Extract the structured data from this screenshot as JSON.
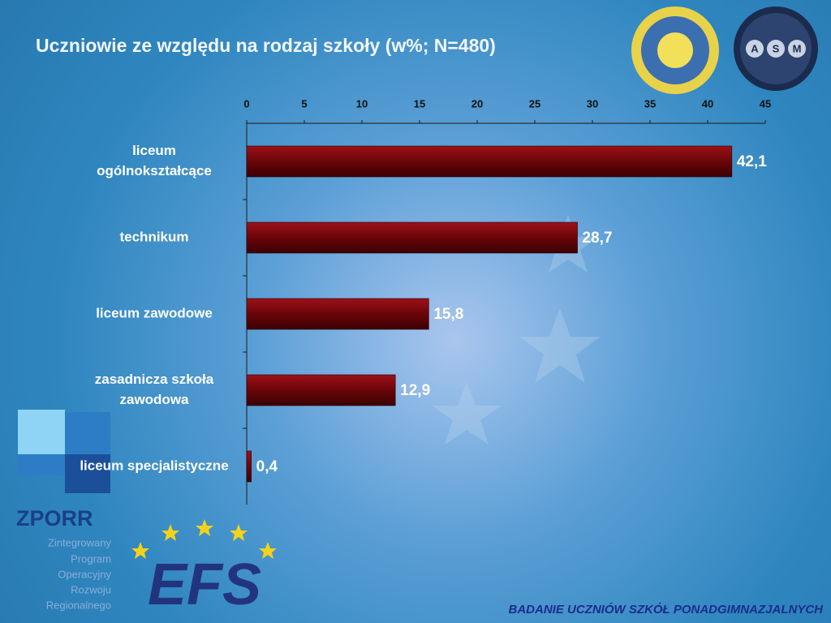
{
  "chart_data": {
    "type": "bar",
    "orientation": "horizontal",
    "title": "Uczniowie ze względu na rodzaj szkoły (w%; N=480)",
    "categories": [
      "liceum ogólnokształcące",
      "technikum",
      "liceum zawodowe",
      "zasadnicza szkoła zawodowa",
      "liceum specjalistyczne"
    ],
    "values": [
      42.1,
      28.7,
      15.8,
      12.9,
      0.4
    ],
    "value_labels": [
      "42,1",
      "28,7",
      "15,8",
      "12,9",
      "0,4"
    ],
    "color": "#7a0a0f",
    "xlim": [
      0,
      45
    ],
    "xticks": [
      0,
      5,
      10,
      15,
      20,
      25,
      30,
      35,
      40,
      45
    ]
  },
  "logos": {
    "zporr": "ZPORR",
    "zporr_subtitle": [
      "Zintegrowany",
      "Program",
      "Operacyjny",
      "Rozwoju",
      "Regionalnego"
    ],
    "efs": "EFS",
    "asm": [
      "A",
      "S",
      "M"
    ]
  },
  "footer": "BADANIE UCZNIÓW SZKÓŁ PONADGIMNAZJALNYCH"
}
